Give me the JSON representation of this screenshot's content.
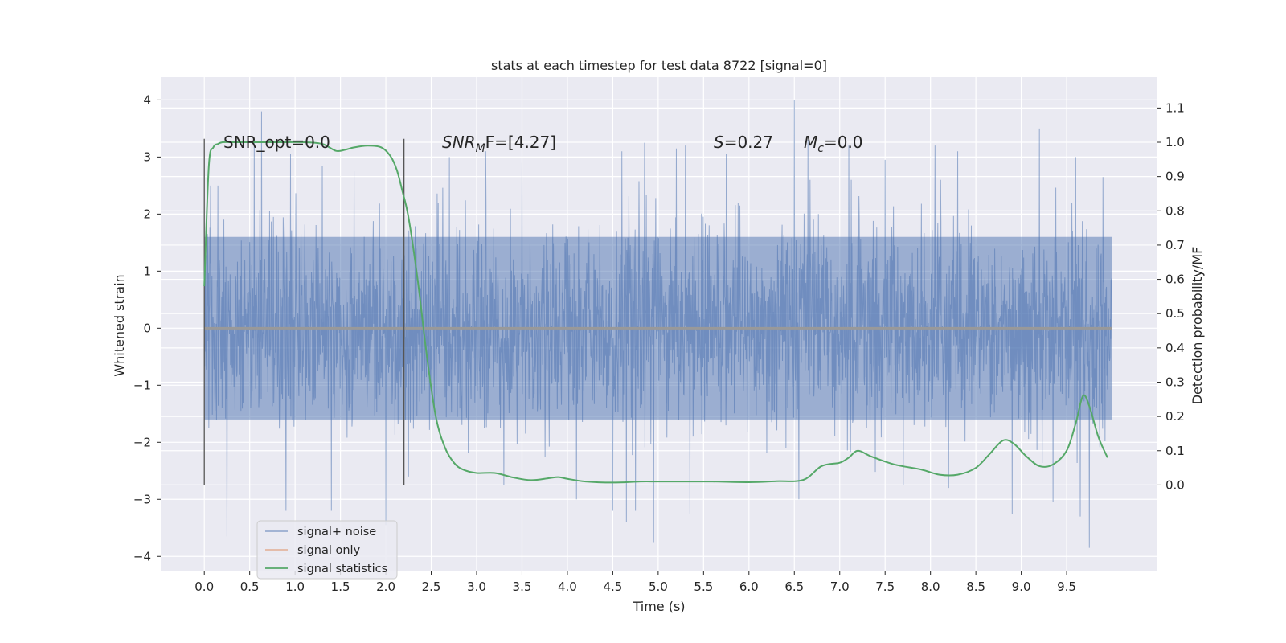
{
  "chart_data": {
    "type": "line",
    "title": "stats at each timestep for test data 8722 [signal=0]",
    "xlabel": "Time (s)",
    "ylabel_left": "Whitened strain",
    "ylabel_right": "Detection probability/MF",
    "xlim": [
      -0.48,
      10.5
    ],
    "ylim_left": [
      -4.25,
      4.4
    ],
    "ylim_right": [
      -0.25,
      1.19
    ],
    "x_ticks": [
      "0.0",
      "0.5",
      "1.0",
      "1.5",
      "2.0",
      "2.5",
      "3.0",
      "3.5",
      "4.0",
      "4.5",
      "5.0",
      "5.5",
      "6.0",
      "6.5",
      "7.0",
      "7.5",
      "8.0",
      "8.5",
      "9.0",
      "9.5"
    ],
    "y_left_ticks": [
      "4",
      "3",
      "2",
      "1",
      "0",
      "−1",
      "−2",
      "−3",
      "−4"
    ],
    "y_right_ticks": [
      "1.1",
      "1.0",
      "0.9",
      "0.8",
      "0.7",
      "0.6",
      "0.5",
      "0.4",
      "0.3",
      "0.2",
      "0.1",
      "0.0"
    ],
    "grid": true,
    "legend": {
      "position": "lower-left",
      "entries": [
        "signal+ noise",
        "signal only",
        "signal statistics"
      ]
    },
    "annotations": {
      "snr_opt": "SNR_opt=0.0",
      "snr_mf_italic": "SNR",
      "snr_mf_sub": "M",
      "snr_mf_rest": "F=[4.27]",
      "s_italic": "S",
      "s_value": "=0.27",
      "mc_italic": "M",
      "mc_sub": "c",
      "mc_value": "=0.0"
    },
    "window_markers_x": [
      0.0,
      2.2
    ],
    "series": [
      {
        "name": "signal+ noise",
        "axis": "left",
        "color": "#4c72b0",
        "x_start": 0.0,
        "x_end": 10.0,
        "band": [
          -1.6,
          1.6
        ],
        "peaks_pos": [
          [
            0.07,
            2.5
          ],
          [
            0.15,
            2.5
          ],
          [
            0.55,
            3.3
          ],
          [
            0.63,
            3.8
          ],
          [
            0.95,
            3.05
          ],
          [
            1.3,
            2.85
          ],
          [
            1.65,
            2.75
          ],
          [
            2.7,
            3.0
          ],
          [
            3.1,
            3.1
          ],
          [
            3.5,
            2.9
          ],
          [
            4.6,
            3.1
          ],
          [
            4.75,
            3.35
          ],
          [
            4.85,
            3.25
          ],
          [
            5.2,
            3.15
          ],
          [
            5.3,
            3.2
          ],
          [
            5.75,
            3.05
          ],
          [
            6.5,
            4.0
          ],
          [
            6.65,
            3.3
          ],
          [
            7.1,
            3.2
          ],
          [
            7.5,
            2.95
          ],
          [
            8.05,
            3.2
          ],
          [
            8.3,
            3.1
          ],
          [
            8.9,
            3.0
          ],
          [
            9.2,
            3.5
          ],
          [
            9.6,
            3.0
          ],
          [
            9.75,
            2.75
          ],
          [
            9.9,
            2.65
          ]
        ],
        "peaks_neg": [
          [
            0.25,
            -3.65
          ],
          [
            0.9,
            -3.2
          ],
          [
            1.4,
            -3.2
          ],
          [
            2.0,
            -3.45
          ],
          [
            2.25,
            -2.6
          ],
          [
            3.3,
            -2.75
          ],
          [
            4.1,
            -3.0
          ],
          [
            4.5,
            -3.2
          ],
          [
            4.65,
            -3.4
          ],
          [
            4.75,
            -3.2
          ],
          [
            4.95,
            -3.75
          ],
          [
            5.35,
            -3.25
          ],
          [
            6.55,
            -3.0
          ],
          [
            7.7,
            -2.75
          ],
          [
            8.2,
            -2.8
          ],
          [
            8.9,
            -3.25
          ],
          [
            9.35,
            -3.05
          ],
          [
            9.65,
            -3.3
          ],
          [
            9.75,
            -3.85
          ]
        ]
      },
      {
        "name": "signal only",
        "axis": "left",
        "color": "#dd8452",
        "x": [
          0.0,
          10.0
        ],
        "y": [
          0.0,
          0.0
        ]
      },
      {
        "name": "signal statistics",
        "axis": "right",
        "color": "#55a868",
        "x": [
          0.0,
          0.05,
          0.1,
          0.15,
          0.2,
          0.3,
          0.5,
          0.7,
          0.9,
          1.1,
          1.3,
          1.45,
          1.55,
          1.65,
          1.8,
          1.95,
          2.05,
          2.12,
          2.18,
          2.25,
          2.35,
          2.45,
          2.55,
          2.65,
          2.75,
          2.85,
          3.0,
          3.2,
          3.4,
          3.6,
          3.8,
          3.9,
          4.0,
          4.2,
          4.5,
          4.8,
          5.0,
          5.3,
          5.6,
          6.0,
          6.3,
          6.6,
          6.8,
          7.0,
          7.1,
          7.2,
          7.35,
          7.6,
          7.9,
          8.1,
          8.3,
          8.5,
          8.65,
          8.8,
          8.92,
          9.05,
          9.2,
          9.35,
          9.5,
          9.6,
          9.68,
          9.75,
          9.85,
          9.95
        ],
        "y": [
          0.58,
          0.93,
          0.985,
          0.995,
          1.0,
          1.0,
          1.0,
          1.0,
          1.0,
          1.0,
          0.995,
          0.975,
          0.978,
          0.985,
          0.99,
          0.985,
          0.96,
          0.92,
          0.86,
          0.78,
          0.6,
          0.38,
          0.2,
          0.11,
          0.065,
          0.045,
          0.035,
          0.035,
          0.022,
          0.014,
          0.02,
          0.023,
          0.018,
          0.01,
          0.007,
          0.01,
          0.01,
          0.01,
          0.01,
          0.008,
          0.011,
          0.015,
          0.055,
          0.065,
          0.08,
          0.1,
          0.083,
          0.06,
          0.045,
          0.03,
          0.03,
          0.05,
          0.09,
          0.13,
          0.12,
          0.085,
          0.055,
          0.06,
          0.1,
          0.18,
          0.26,
          0.23,
          0.14,
          0.08
        ]
      }
    ]
  }
}
